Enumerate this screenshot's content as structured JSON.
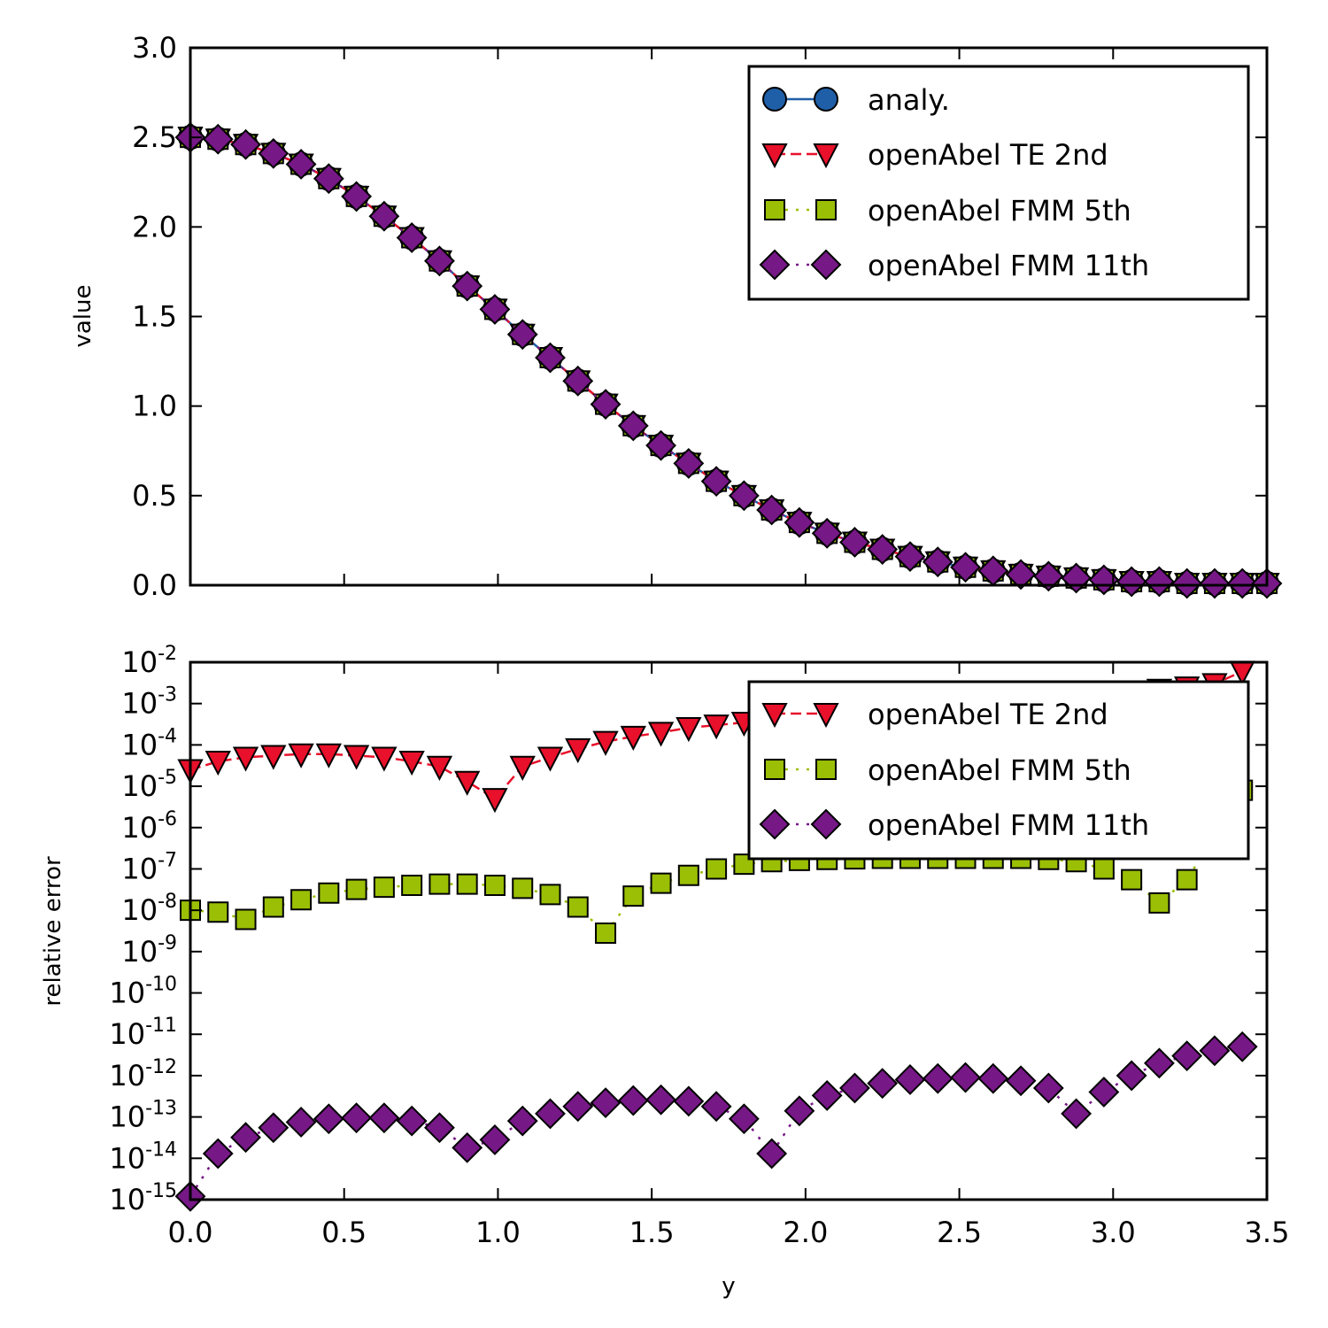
{
  "colors": {
    "analytic": "#1f5fa8",
    "te": "#e8102a",
    "fmm5": "#9abf05",
    "fmm11": "#771887",
    "frame": "#000000"
  },
  "chart_data": [
    {
      "type": "line",
      "panel": "top",
      "xlim": [
        0,
        3.5
      ],
      "ylim": [
        0,
        3
      ],
      "xlabel": "",
      "ylabel": "value",
      "yticks": [
        "0.0",
        "0.5",
        "1.0",
        "1.5",
        "2.0",
        "2.5",
        "3.0"
      ],
      "grid": false,
      "legend_position": "top-right",
      "x": [
        0.0,
        0.09,
        0.18,
        0.27,
        0.36,
        0.45,
        0.54,
        0.63,
        0.72,
        0.81,
        0.9,
        0.99,
        1.08,
        1.17,
        1.26,
        1.35,
        1.44,
        1.53,
        1.62,
        1.71,
        1.8,
        1.89,
        1.98,
        2.07,
        2.16,
        2.25,
        2.34,
        2.43,
        2.52,
        2.61,
        2.7,
        2.79,
        2.88,
        2.97,
        3.06,
        3.15,
        3.24,
        3.33,
        3.42,
        3.5
      ],
      "y": [
        2.5,
        2.49,
        2.46,
        2.41,
        2.35,
        2.27,
        2.17,
        2.06,
        1.94,
        1.81,
        1.67,
        1.54,
        1.4,
        1.27,
        1.14,
        1.01,
        0.89,
        0.78,
        0.68,
        0.58,
        0.5,
        0.42,
        0.35,
        0.29,
        0.24,
        0.2,
        0.16,
        0.13,
        0.1,
        0.08,
        0.06,
        0.05,
        0.04,
        0.03,
        0.02,
        0.02,
        0.01,
        0.01,
        0.01,
        0.01
      ],
      "series": [
        {
          "name": "analy.",
          "marker": "circle",
          "line": "solid",
          "color_key": "analytic"
        },
        {
          "name": "openAbel TE 2nd",
          "marker": "triangle-down",
          "line": "dashed",
          "color_key": "te"
        },
        {
          "name": "openAbel FMM 5th",
          "marker": "square",
          "line": "dotted",
          "color_key": "fmm5"
        },
        {
          "name": "openAbel FMM 11th",
          "marker": "diamond",
          "line": "dotted",
          "color_key": "fmm11"
        }
      ]
    },
    {
      "type": "line",
      "panel": "bottom",
      "xlim": [
        0,
        3.5
      ],
      "ylim": [
        1e-15,
        0.01
      ],
      "yscale": "log",
      "xlabel": "y",
      "ylabel": "relative error",
      "xticks": [
        "0.0",
        "0.5",
        "1.0",
        "1.5",
        "2.0",
        "2.5",
        "3.0",
        "3.5"
      ],
      "ytick_exponents": [
        "-15",
        "-14",
        "-13",
        "-12",
        "-11",
        "-10",
        "-9",
        "-8",
        "-7",
        "-6",
        "-5",
        "-4",
        "-3",
        "-2"
      ],
      "ytick_base": "10",
      "grid": false,
      "legend_position": "top-right",
      "series": [
        {
          "name": "openAbel TE 2nd",
          "marker": "triangle-down",
          "line": "dashed",
          "color_key": "te",
          "x": [
            0.0,
            0.09,
            0.18,
            0.27,
            0.36,
            0.45,
            0.54,
            0.63,
            0.72,
            0.81,
            0.9,
            0.99,
            1.08,
            1.17,
            1.26,
            1.35,
            1.44,
            1.53,
            1.62,
            1.71,
            1.8,
            3.15,
            3.24,
            3.33,
            3.42
          ],
          "y": [
            2.5e-05,
            4e-05,
            5e-05,
            5.5e-05,
            6e-05,
            6e-05,
            5.5e-05,
            5e-05,
            4e-05,
            3e-05,
            1.3e-05,
            5e-06,
            3e-05,
            5e-05,
            8e-05,
            0.00012,
            0.00016,
            0.0002,
            0.00026,
            0.0003,
            0.00035,
            0.0022,
            0.0025,
            0.003,
            0.006
          ]
        },
        {
          "name": "openAbel FMM 5th",
          "marker": "square",
          "line": "dotted",
          "color_key": "fmm5",
          "x": [
            0.0,
            0.09,
            0.18,
            0.27,
            0.36,
            0.45,
            0.54,
            0.63,
            0.72,
            0.81,
            0.9,
            0.99,
            1.08,
            1.17,
            1.26,
            1.35,
            1.44,
            1.53,
            1.62,
            1.71,
            1.8,
            1.89,
            1.98,
            2.07,
            2.16,
            2.25,
            2.34,
            2.43,
            2.52,
            2.61,
            2.7,
            2.79,
            2.88,
            2.97,
            3.06,
            3.15,
            3.24,
            3.42
          ],
          "y": [
            1e-08,
            9e-09,
            6e-09,
            1.2e-08,
            1.8e-08,
            2.6e-08,
            3.2e-08,
            3.6e-08,
            4e-08,
            4.3e-08,
            4.3e-08,
            4e-08,
            3.4e-08,
            2.4e-08,
            1.2e-08,
            2.8e-09,
            2.2e-08,
            4.5e-08,
            7e-08,
            1e-07,
            1.3e-07,
            1.5e-07,
            1.6e-07,
            1.7e-07,
            1.75e-07,
            1.8e-07,
            1.8e-07,
            1.8e-07,
            1.8e-07,
            1.8e-07,
            1.8e-07,
            1.7e-07,
            1.5e-07,
            1e-07,
            5.5e-08,
            1.5e-08,
            5.5e-08,
            8e-06
          ]
        },
        {
          "name": "openAbel FMM 11th",
          "marker": "diamond",
          "line": "dotted",
          "color_key": "fmm11",
          "x": [
            0.0,
            0.09,
            0.18,
            0.27,
            0.36,
            0.45,
            0.54,
            0.63,
            0.72,
            0.81,
            0.9,
            0.99,
            1.08,
            1.17,
            1.26,
            1.35,
            1.44,
            1.53,
            1.62,
            1.71,
            1.8,
            1.89,
            1.98,
            2.07,
            2.16,
            2.25,
            2.34,
            2.43,
            2.52,
            2.61,
            2.7,
            2.79,
            2.88,
            2.97,
            3.06,
            3.15,
            3.24,
            3.33,
            3.42
          ],
          "y": [
            1.2e-15,
            1.3e-14,
            3.2e-14,
            5.5e-14,
            7.5e-14,
            9e-14,
            9.5e-14,
            9.5e-14,
            8e-14,
            5.5e-14,
            1.8e-14,
            2.8e-14,
            8e-14,
            1.2e-13,
            1.8e-13,
            2.2e-13,
            2.5e-13,
            2.6e-13,
            2.4e-13,
            1.8e-13,
            9e-14,
            1.3e-14,
            1.4e-13,
            3.3e-13,
            5e-13,
            6.5e-13,
            8e-13,
            8.5e-13,
            9e-13,
            8.5e-13,
            7.5e-13,
            5e-13,
            1.2e-13,
            4e-13,
            1e-12,
            2e-12,
            3e-12,
            4e-12,
            5e-12
          ]
        }
      ]
    }
  ]
}
